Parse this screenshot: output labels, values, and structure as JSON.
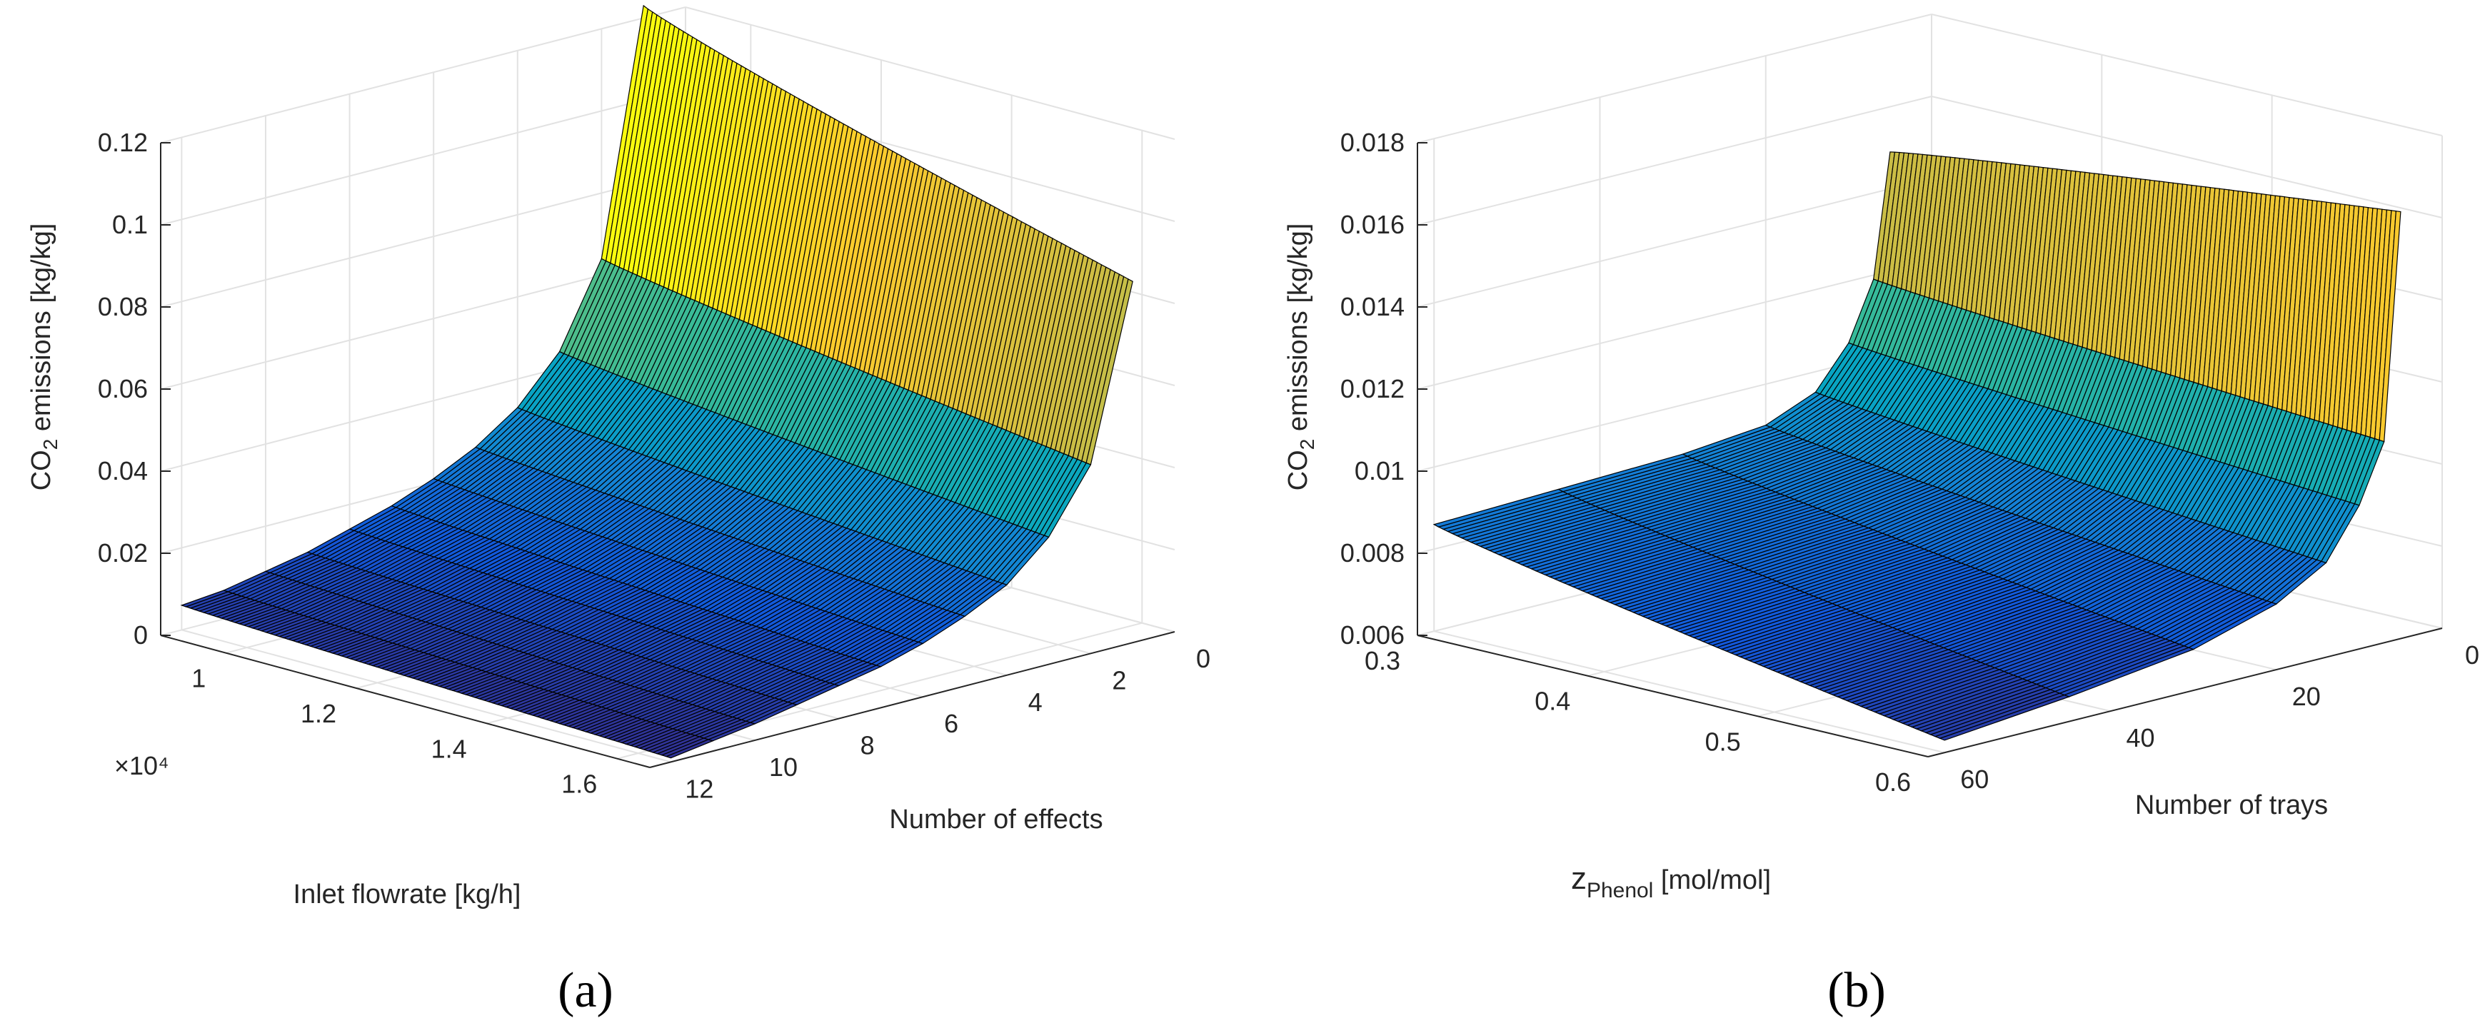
{
  "chart_data": [
    {
      "type": "surface",
      "caption": "(a)",
      "zlabel": "CO2 emissions [kg/kg]",
      "xlabel": "Inlet flowrate [kg/h]",
      "ylabel": "Number of effects",
      "x_multiplier": "×10⁴",
      "z_ticks": [
        "0",
        "0.02",
        "0.04",
        "0.06",
        "0.08",
        "0.1",
        "0.12"
      ],
      "x_ticks": [
        "1",
        "1.2",
        "1.4",
        "1.6"
      ],
      "y_ticks": [
        "0",
        "2",
        "4",
        "6",
        "8",
        "10",
        "12"
      ],
      "xlim": [
        9000,
        16500
      ],
      "ylim": [
        0,
        12.5
      ],
      "zlim": [
        0,
        0.12
      ],
      "y_values": [
        1,
        2,
        3,
        4,
        5,
        6,
        7,
        8,
        9,
        10,
        11,
        12
      ],
      "z_at_min_x": [
        0.123,
        0.064,
        0.044,
        0.033,
        0.026,
        0.021,
        0.017,
        0.014,
        0.011,
        0.009,
        0.007,
        0.006
      ],
      "z_at_max_x": [
        0.088,
        0.046,
        0.031,
        0.022,
        0.017,
        0.013,
        0.01,
        0.008,
        0.006,
        0.004,
        0.0025,
        0.001
      ]
    },
    {
      "type": "surface",
      "caption": "(b)",
      "zlabel": "CO2 emissions [kg/kg]",
      "xlabel": "zPhenol [mol/mol]",
      "ylabel": "Number of trays",
      "z_ticks": [
        "0.006",
        "0.008",
        "0.01",
        "0.012",
        "0.014",
        "0.016",
        "0.018"
      ],
      "x_ticks": [
        "0.3",
        "0.4",
        "0.5",
        "0.6"
      ],
      "y_ticks": [
        "0",
        "20",
        "40",
        "60"
      ],
      "xlim": [
        0.3,
        0.6
      ],
      "ylim": [
        0,
        62
      ],
      "zlim": [
        0.006,
        0.018
      ],
      "y_values": [
        5,
        7,
        10,
        14,
        20,
        30,
        45,
        60
      ],
      "z_at_min_x": [
        0.0149,
        0.0119,
        0.0105,
        0.0095,
        0.009,
        0.0088,
        0.0087,
        0.0086
      ],
      "z_at_max_x": [
        0.0164,
        0.0109,
        0.0095,
        0.0083,
        0.0076,
        0.007,
        0.0066,
        0.0063
      ]
    }
  ]
}
